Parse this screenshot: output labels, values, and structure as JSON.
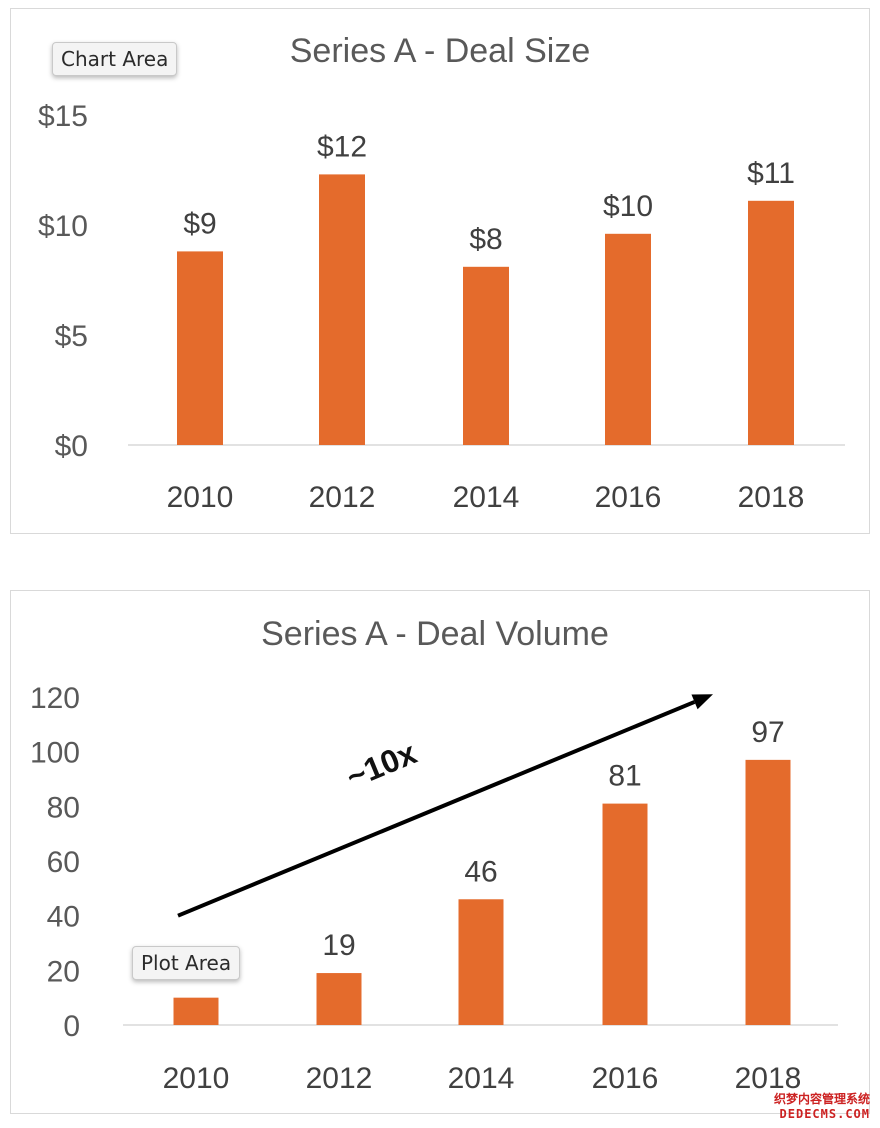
{
  "chart_data": [
    {
      "type": "bar",
      "title": "Series A - Deal Size",
      "categories": [
        "2010",
        "2012",
        "2014",
        "2016",
        "2018"
      ],
      "values": [
        8.8,
        12.3,
        8.1,
        9.6,
        11.1
      ],
      "data_labels": [
        "$9",
        "$12",
        "$8",
        "$10",
        "$11"
      ],
      "y_ticks": [
        0,
        5,
        10,
        15
      ],
      "y_tick_labels": [
        "$0",
        "$5",
        "$10",
        "$15"
      ],
      "ylim": [
        0,
        15
      ],
      "xlabel": "",
      "ylabel": "",
      "grid": false,
      "color": "#e46b2c",
      "tooltip": "Chart Area"
    },
    {
      "type": "bar",
      "title": "Series A - Deal Volume",
      "categories": [
        "2010",
        "2012",
        "2014",
        "2016",
        "2018"
      ],
      "values": [
        10,
        19,
        46,
        81,
        97
      ],
      "data_labels": [
        "",
        "19",
        "46",
        "81",
        "97"
      ],
      "y_ticks": [
        0,
        20,
        40,
        60,
        80,
        100,
        120
      ],
      "y_tick_labels": [
        "0",
        "20",
        "40",
        "60",
        "80",
        "100",
        "120"
      ],
      "ylim": [
        0,
        120
      ],
      "xlabel": "",
      "ylabel": "",
      "grid": false,
      "color": "#e46b2c",
      "annotation": "~10x",
      "trend_arrow": {
        "from": [
          "2010",
          40
        ],
        "to": [
          "2018",
          121
        ]
      },
      "tooltip": "Plot Area"
    }
  ],
  "watermark": {
    "line1": "织梦内容管理系统",
    "line2": "DEDECMS.COM"
  }
}
